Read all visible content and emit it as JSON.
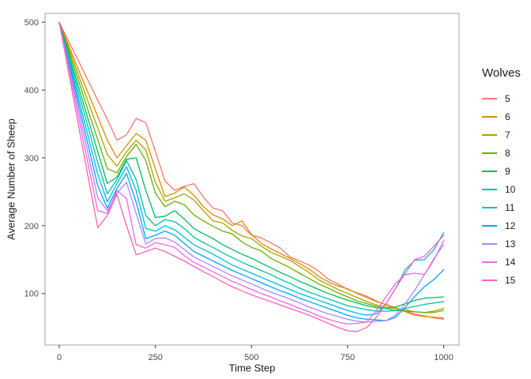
{
  "figure": {
    "background": "#ffffff",
    "panel_border_color": "#a3a3a3",
    "tick_mark_color": "#333333",
    "tick_label_color": "#4d4d4d",
    "axis_title_color": "#1a1a1a",
    "line_width": 1.3
  },
  "chart_data": {
    "type": "line",
    "title": "",
    "xlabel": "Time Step",
    "ylabel": "Average Number of Sheep",
    "legend_title": "Wolves",
    "legend_position": "right",
    "grid": false,
    "xlim": [
      -37,
      1040
    ],
    "ylim": [
      24,
      513
    ],
    "x_ticks": [
      0,
      250,
      500,
      750,
      1000
    ],
    "y_ticks": [
      100,
      200,
      300,
      400,
      500
    ],
    "x": [
      0,
      25,
      50,
      75,
      100,
      125,
      150,
      175,
      200,
      225,
      250,
      275,
      300,
      325,
      350,
      375,
      400,
      425,
      450,
      475,
      500,
      525,
      550,
      575,
      600,
      625,
      650,
      675,
      700,
      725,
      750,
      775,
      800,
      825,
      850,
      875,
      900,
      925,
      950,
      975,
      1000
    ],
    "series": [
      {
        "name": "5",
        "color": "#F8766D",
        "values": [
          500,
          471,
          443,
          414,
          385,
          357,
          326,
          334,
          358,
          352,
          310,
          266,
          252,
          258,
          262,
          242,
          226,
          222,
          204,
          200,
          186,
          182,
          175,
          167,
          154,
          148,
          142,
          133,
          121,
          114,
          106,
          101,
          96,
          89,
          83,
          78,
          74,
          70,
          67,
          64,
          62
        ]
      },
      {
        "name": "6",
        "color": "#DB8E00",
        "values": [
          500,
          465,
          430,
          396,
          361,
          326,
          300,
          318,
          336,
          326,
          284,
          243,
          248,
          257,
          245,
          228,
          216,
          210,
          200,
          207,
          187,
          174,
          166,
          159,
          152,
          144,
          136,
          125,
          117,
          111,
          107,
          100,
          94,
          88,
          84,
          79,
          73,
          68,
          66,
          65,
          64
        ]
      },
      {
        "name": "7",
        "color": "#AEA200",
        "values": [
          500,
          461,
          422,
          383,
          344,
          305,
          288,
          309,
          326,
          312,
          264,
          236,
          241,
          247,
          238,
          222,
          207,
          204,
          193,
          185,
          181,
          170,
          161,
          155,
          149,
          140,
          131,
          120,
          113,
          106,
          100,
          94,
          88,
          83,
          80,
          78,
          76,
          73,
          72,
          72,
          75
        ]
      },
      {
        "name": "8",
        "color": "#64B200",
        "values": [
          500,
          457,
          414,
          370,
          327,
          284,
          278,
          302,
          320,
          296,
          248,
          228,
          236,
          231,
          216,
          207,
          199,
          192,
          188,
          176,
          168,
          163,
          152,
          145,
          138,
          130,
          122,
          114,
          108,
          101,
          95,
          89,
          85,
          81,
          78,
          75,
          74,
          73,
          72,
          74,
          78
        ]
      },
      {
        "name": "9",
        "color": "#00BD5C",
        "values": [
          500,
          452,
          405,
          357,
          309,
          262,
          272,
          298,
          300,
          252,
          212,
          214,
          222,
          210,
          196,
          188,
          181,
          172,
          165,
          158,
          152,
          145,
          138,
          131,
          125,
          118,
          112,
          106,
          100,
          95,
          90,
          86,
          82,
          79,
          78,
          80,
          85,
          90,
          93,
          94,
          95
        ]
      },
      {
        "name": "10",
        "color": "#00C1A7",
        "values": [
          500,
          448,
          397,
          345,
          293,
          247,
          268,
          296,
          268,
          215,
          200,
          209,
          206,
          196,
          183,
          175,
          168,
          160,
          153,
          146,
          140,
          134,
          128,
          121,
          115,
          108,
          102,
          97,
          92,
          87,
          82,
          79,
          76,
          74,
          74,
          75,
          78,
          81,
          84,
          86,
          88
        ]
      },
      {
        "name": "11",
        "color": "#00BADE",
        "values": [
          500,
          444,
          388,
          332,
          276,
          235,
          262,
          287,
          252,
          196,
          192,
          200,
          194,
          183,
          172,
          165,
          158,
          150,
          142,
          136,
          130,
          124,
          118,
          112,
          106,
          100,
          95,
          90,
          85,
          80,
          75,
          71,
          68,
          70,
          85,
          108,
          135,
          149,
          150,
          165,
          190
        ]
      },
      {
        "name": "12",
        "color": "#00A6FF",
        "values": [
          500,
          440,
          380,
          319,
          259,
          226,
          255,
          277,
          235,
          181,
          186,
          192,
          186,
          174,
          162,
          155,
          148,
          141,
          134,
          128,
          122,
          116,
          110,
          104,
          99,
          93,
          88,
          83,
          78,
          73,
          68,
          64,
          62,
          61,
          60,
          65,
          80,
          96,
          110,
          121,
          135
        ]
      },
      {
        "name": "13",
        "color": "#B385FF",
        "values": [
          500,
          435,
          371,
          306,
          241,
          222,
          248,
          264,
          218,
          173,
          181,
          182,
          176,
          165,
          154,
          147,
          140,
          133,
          126,
          120,
          114,
          108,
          102,
          97,
          92,
          86,
          80,
          75,
          70,
          66,
          62,
          59,
          58,
          59,
          60,
          68,
          85,
          105,
          128,
          152,
          172
        ]
      },
      {
        "name": "14",
        "color": "#EF67EB",
        "values": [
          500,
          430,
          361,
          291,
          222,
          218,
          252,
          240,
          172,
          167,
          175,
          172,
          168,
          156,
          146,
          139,
          132,
          125,
          118,
          112,
          106,
          100,
          95,
          89,
          84,
          78,
          73,
          67,
          62,
          58,
          55,
          56,
          58,
          75,
          95,
          115,
          128,
          130,
          128,
          150,
          178
        ]
      },
      {
        "name": "15",
        "color": "#FF63B6",
        "values": [
          500,
          424,
          348,
          272,
          197,
          215,
          246,
          200,
          157,
          162,
          167,
          162,
          155,
          148,
          140,
          132,
          125,
          117,
          110,
          104,
          98,
          93,
          88,
          83,
          78,
          73,
          68,
          62,
          56,
          50,
          45,
          44,
          50,
          65,
          85,
          108,
          130,
          150,
          155,
          170,
          186
        ]
      }
    ]
  }
}
